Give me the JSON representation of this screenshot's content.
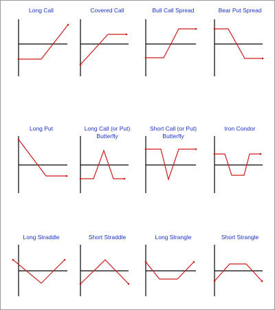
{
  "diagram": {
    "stroke_color": "#cc1a1a",
    "axis_color": "#000000",
    "title_color": "#1a2fc8",
    "panels": [
      {
        "title_lines": [
          "Long Call"
        ]
      },
      {
        "title_lines": [
          "Covered Call"
        ]
      },
      {
        "title_lines": [
          "Bull Call Spread"
        ]
      },
      {
        "title_lines": [
          "Bear Put Spread"
        ]
      },
      {
        "title_lines": [
          "Long Put"
        ]
      },
      {
        "title_lines": [
          "Long Call (or Put)",
          "Butterfly"
        ]
      },
      {
        "title_lines": [
          "Short Call (or Put)",
          "Butterfly"
        ]
      },
      {
        "title_lines": [
          "Iron Condor"
        ]
      },
      {
        "title_lines": [
          "Long Straddle"
        ]
      },
      {
        "title_lines": [
          "Short Straddle"
        ]
      },
      {
        "title_lines": [
          "Long Strangle"
        ]
      },
      {
        "title_lines": [
          "Short Strangle"
        ]
      }
    ]
  }
}
